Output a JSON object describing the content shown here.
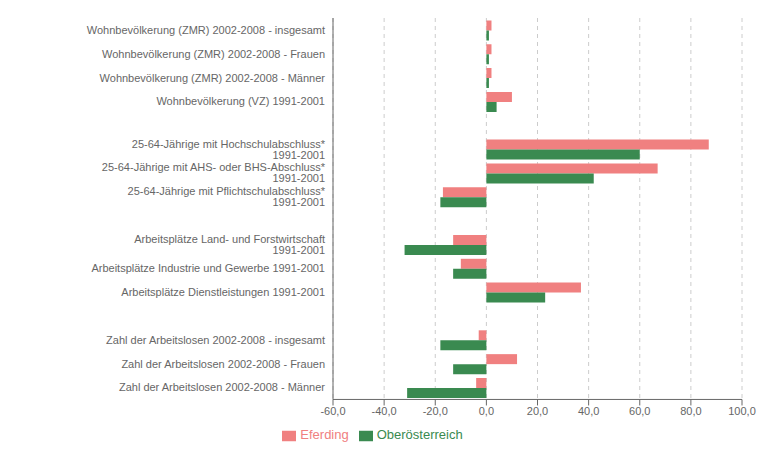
{
  "chart_data": {
    "type": "bar",
    "orientation": "horizontal",
    "categories": [
      "Wohnbevölkerung (ZMR) 2002-2008 - insgesamt",
      "Wohnbevölkerung (ZMR) 2002-2008 - Frauen",
      "Wohnbevölkerung (ZMR) 2002-2008 - Männer",
      "Wohnbevölkerung (VZ) 1991-2001",
      null,
      "25-64-Jährige mit Hochschulabschluss* 1991-2001",
      "25-64-Jährige mit AHS- oder BHS-Abschluss* 1991-2001",
      "25-64-Jährige mit Pflichtschulabschluss* 1991-2001",
      null,
      "Arbeitsplätze Land- und Forstwirtschaft 1991-2001",
      "Arbeitsplätze Industrie und Gewerbe 1991-2001",
      "Arbeitsplätze Dienstleistungen 1991-2001",
      null,
      "Zahl der Arbeitslosen 2002-2008 - insgesamt",
      "Zahl der Arbeitslosen 2002-2008 - Frauen",
      "Zahl der Arbeitslosen 2002-2008 - Männer"
    ],
    "series": [
      {
        "name": "Eferding",
        "color": "#f08080",
        "values": [
          2.0,
          2.0,
          2.0,
          10.0,
          null,
          87.0,
          67.0,
          -17.0,
          null,
          -13.0,
          -10.0,
          37.0,
          null,
          -3.0,
          12.0,
          -4.0
        ]
      },
      {
        "name": "Oberösterreich",
        "color": "#3a8a50",
        "values": [
          1.0,
          1.0,
          1.0,
          4.0,
          null,
          60.0,
          42.0,
          -18.0,
          null,
          -32.0,
          -13.0,
          23.0,
          null,
          -18.0,
          -13.0,
          -31.0
        ]
      }
    ],
    "xlim": [
      -60,
      100
    ],
    "xticks": [
      {
        "value": -60,
        "label": "-60,0"
      },
      {
        "value": -40,
        "label": "-40,0"
      },
      {
        "value": -20,
        "label": "-20,0"
      },
      {
        "value": 0,
        "label": "0,0"
      },
      {
        "value": 20,
        "label": "20,0"
      },
      {
        "value": 40,
        "label": "40,0"
      },
      {
        "value": 60,
        "label": "60,0"
      },
      {
        "value": 80,
        "label": "80,0"
      },
      {
        "value": 100,
        "label": "100,0"
      }
    ],
    "grid": true,
    "legend": "bottom"
  }
}
